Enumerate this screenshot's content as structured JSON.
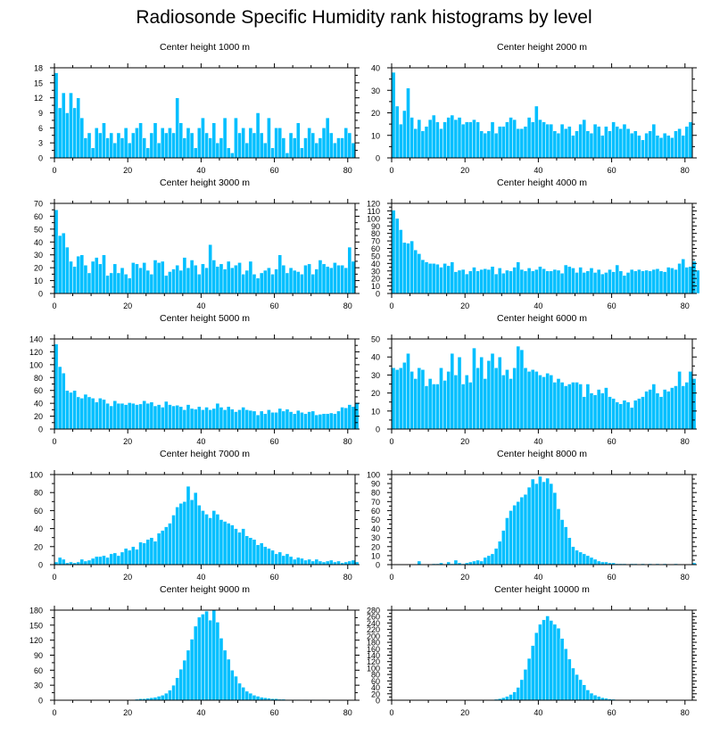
{
  "title": "Radiosonde Specific Humidity rank histograms by level",
  "style": {
    "bar_color": "#00bfff",
    "bar_edge": "#ffffff",
    "axis_color": "#000000"
  },
  "chart_data": [
    {
      "type": "bar",
      "title": "Center height 1000 m",
      "xlim": [
        0,
        82
      ],
      "ylim": [
        0,
        18
      ],
      "xticks": [
        0,
        20,
        40,
        60,
        80
      ],
      "yticks": [
        0,
        3,
        6,
        9,
        12,
        15,
        18
      ],
      "values": [
        17,
        10,
        13,
        9,
        13,
        10,
        12,
        8,
        4,
        5,
        2,
        6,
        5,
        7,
        4,
        5,
        3,
        5,
        4,
        6,
        3,
        5,
        6,
        7,
        4,
        2,
        5,
        7,
        3,
        6,
        5,
        6,
        5,
        12,
        7,
        4,
        6,
        5,
        2,
        6,
        8,
        5,
        4,
        7,
        3,
        4,
        8,
        2,
        1,
        8,
        5,
        6,
        3,
        6,
        5,
        9,
        5,
        3,
        8,
        2,
        6,
        6,
        4,
        1,
        5,
        4,
        7,
        2,
        4,
        6,
        5,
        3,
        4,
        6,
        8,
        5,
        3,
        4,
        4,
        6,
        5,
        3
      ]
    },
    {
      "type": "bar",
      "title": "Center height 2000 m",
      "xlim": [
        0,
        82
      ],
      "ylim": [
        0,
        40
      ],
      "xticks": [
        0,
        20,
        40,
        60,
        80
      ],
      "yticks": [
        0,
        10,
        20,
        30,
        40
      ],
      "values": [
        38,
        23,
        15,
        21,
        31,
        18,
        13,
        17,
        12,
        14,
        17,
        19,
        16,
        13,
        16,
        18,
        19,
        17,
        18,
        15,
        16,
        16,
        17,
        16,
        12,
        11,
        12,
        16,
        11,
        14,
        14,
        16,
        18,
        17,
        13,
        13,
        14,
        18,
        16,
        23,
        17,
        16,
        15,
        15,
        12,
        11,
        15,
        13,
        14,
        10,
        12,
        15,
        17,
        12,
        11,
        15,
        14,
        10,
        14,
        12,
        16,
        14,
        13,
        15,
        13,
        11,
        12,
        10,
        8,
        11,
        12,
        15,
        10,
        9,
        11,
        10,
        9,
        12,
        13,
        10,
        14,
        16
      ]
    },
    {
      "type": "bar",
      "title": "Center height 3000 m",
      "xlim": [
        0,
        82
      ],
      "ylim": [
        0,
        70
      ],
      "xticks": [
        0,
        20,
        40,
        60,
        80
      ],
      "yticks": [
        0,
        10,
        20,
        30,
        40,
        50,
        60,
        70
      ],
      "values": [
        65,
        45,
        47,
        36,
        25,
        21,
        29,
        30,
        22,
        16,
        25,
        28,
        23,
        30,
        14,
        16,
        23,
        16,
        20,
        15,
        12,
        24,
        23,
        20,
        24,
        18,
        15,
        26,
        24,
        25,
        14,
        17,
        19,
        22,
        18,
        28,
        20,
        26,
        22,
        15,
        23,
        20,
        38,
        26,
        21,
        23,
        19,
        25,
        20,
        22,
        24,
        15,
        18,
        25,
        15,
        12,
        16,
        18,
        20,
        15,
        19,
        30,
        22,
        16,
        20,
        18,
        17,
        15,
        22,
        23,
        15,
        19,
        26,
        23,
        21,
        20,
        24,
        22,
        22,
        20,
        36,
        25
      ]
    },
    {
      "type": "bar",
      "title": "Center height 4000 m",
      "xlim": [
        0,
        82
      ],
      "ylim": [
        0,
        120
      ],
      "xticks": [
        0,
        20,
        40,
        60,
        80
      ],
      "yticks": [
        0,
        10,
        20,
        30,
        40,
        50,
        60,
        70,
        80,
        90,
        100,
        110,
        120
      ],
      "values": [
        111,
        100,
        85,
        68,
        67,
        70,
        58,
        53,
        45,
        42,
        40,
        40,
        39,
        35,
        40,
        37,
        42,
        29,
        31,
        32,
        26,
        30,
        35,
        30,
        32,
        33,
        32,
        36,
        26,
        34,
        27,
        31,
        30,
        35,
        42,
        32,
        30,
        34,
        30,
        32,
        36,
        33,
        30,
        30,
        32,
        31,
        27,
        38,
        36,
        34,
        28,
        35,
        28,
        30,
        34,
        28,
        32,
        26,
        28,
        32,
        29,
        38,
        30,
        24,
        28,
        32,
        30,
        32,
        30,
        31,
        30,
        32,
        33,
        30,
        29,
        35,
        34,
        32,
        40,
        46,
        35,
        36,
        43,
        31
      ]
    },
    {
      "type": "bar",
      "title": "Center height 5000 m",
      "xlim": [
        0,
        82
      ],
      "ylim": [
        0,
        140
      ],
      "xticks": [
        0,
        20,
        40,
        60,
        80
      ],
      "yticks": [
        0,
        20,
        40,
        60,
        80,
        100,
        120,
        140
      ],
      "values": [
        132,
        97,
        87,
        60,
        57,
        60,
        50,
        48,
        54,
        50,
        48,
        42,
        48,
        46,
        40,
        36,
        44,
        40,
        40,
        38,
        41,
        40,
        38,
        39,
        44,
        40,
        42,
        36,
        38,
        34,
        43,
        38,
        36,
        37,
        35,
        30,
        38,
        32,
        31,
        35,
        30,
        34,
        30,
        32,
        40,
        34,
        30,
        35,
        31,
        27,
        30,
        34,
        30,
        29,
        28,
        22,
        28,
        24,
        30,
        26,
        26,
        32,
        28,
        31,
        27,
        24,
        29,
        26,
        24,
        27,
        28,
        22,
        23,
        24,
        24,
        25,
        24,
        28,
        34,
        33,
        38,
        35,
        41
      ]
    },
    {
      "type": "bar",
      "title": "Center height 6000 m",
      "xlim": [
        0,
        82
      ],
      "ylim": [
        0,
        50
      ],
      "xticks": [
        0,
        20,
        40,
        60,
        80
      ],
      "yticks": [
        0,
        10,
        20,
        30,
        40,
        50
      ],
      "values": [
        34,
        33,
        34,
        37,
        42,
        32,
        28,
        34,
        33,
        24,
        28,
        25,
        25,
        34,
        27,
        32,
        42,
        30,
        40,
        25,
        30,
        26,
        45,
        34,
        40,
        28,
        38,
        42,
        34,
        40,
        30,
        33,
        28,
        34,
        46,
        44,
        34,
        32,
        33,
        32,
        30,
        29,
        31,
        30,
        26,
        28,
        26,
        24,
        25,
        26,
        26,
        25,
        18,
        25,
        20,
        19,
        22,
        20,
        23,
        18,
        17,
        15,
        14,
        16,
        15,
        12,
        16,
        17,
        18,
        21,
        22,
        25,
        20,
        18,
        22,
        21,
        23,
        24,
        32,
        24,
        26,
        32,
        28
      ]
    },
    {
      "type": "bar",
      "title": "Center height 7000 m",
      "xlim": [
        0,
        82
      ],
      "ylim": [
        0,
        100
      ],
      "xticks": [
        0,
        20,
        40,
        60,
        80
      ],
      "yticks": [
        0,
        20,
        40,
        60,
        80,
        100
      ],
      "values": [
        3,
        8,
        6,
        2,
        3,
        2,
        3,
        6,
        4,
        5,
        7,
        9,
        9,
        10,
        8,
        12,
        13,
        10,
        14,
        18,
        16,
        20,
        17,
        25,
        24,
        28,
        30,
        26,
        35,
        38,
        42,
        46,
        55,
        64,
        68,
        70,
        87,
        72,
        80,
        66,
        60,
        56,
        52,
        60,
        56,
        50,
        48,
        46,
        44,
        40,
        36,
        40,
        32,
        30,
        28,
        22,
        24,
        20,
        18,
        16,
        12,
        14,
        10,
        12,
        9,
        6,
        8,
        7,
        5,
        6,
        4,
        6,
        4,
        3,
        4,
        5,
        3,
        4,
        2,
        3,
        4,
        5,
        3
      ]
    },
    {
      "type": "bar",
      "title": "Center height 8000 m",
      "xlim": [
        0,
        82
      ],
      "ylim": [
        0,
        100
      ],
      "xticks": [
        0,
        20,
        40,
        60,
        80
      ],
      "yticks": [
        0,
        10,
        20,
        30,
        40,
        50,
        60,
        70,
        80,
        90,
        100
      ],
      "values": [
        0,
        0,
        0,
        0,
        0,
        0,
        0,
        4,
        0,
        0,
        0,
        1,
        1,
        2,
        0,
        3,
        1,
        5,
        2,
        1,
        2,
        3,
        4,
        5,
        4,
        8,
        10,
        12,
        18,
        26,
        38,
        52,
        60,
        66,
        70,
        75,
        78,
        86,
        95,
        90,
        98,
        92,
        96,
        90,
        80,
        62,
        50,
        42,
        30,
        20,
        16,
        14,
        12,
        10,
        8,
        6,
        4,
        3,
        3,
        2,
        2,
        1,
        1,
        1,
        0,
        1,
        1,
        0,
        1,
        0,
        1,
        0,
        1,
        0,
        1,
        0,
        0,
        1,
        0,
        0,
        0,
        0,
        2
      ]
    },
    {
      "type": "bar",
      "title": "Center height 9000 m",
      "xlim": [
        0,
        82
      ],
      "ylim": [
        0,
        180
      ],
      "xticks": [
        0,
        20,
        40,
        60,
        80
      ],
      "yticks": [
        0,
        30,
        60,
        90,
        120,
        150,
        180
      ],
      "values": [
        0,
        0,
        0,
        0,
        0,
        0,
        0,
        0,
        0,
        0,
        0,
        0,
        0,
        0,
        0,
        0,
        0,
        0,
        0,
        0,
        0,
        1,
        2,
        3,
        3,
        4,
        5,
        6,
        8,
        10,
        14,
        20,
        30,
        45,
        62,
        80,
        100,
        122,
        148,
        166,
        172,
        178,
        160,
        180,
        156,
        124,
        100,
        82,
        60,
        48,
        34,
        26,
        18,
        14,
        10,
        8,
        6,
        5,
        4,
        3,
        3,
        2,
        2,
        1,
        1,
        1,
        1,
        0,
        1,
        0,
        1,
        0,
        0,
        1,
        0,
        0,
        0,
        0,
        0,
        0,
        0,
        0,
        0
      ]
    },
    {
      "type": "bar",
      "title": "Center height 10000 m",
      "xlim": [
        0,
        82
      ],
      "ylim": [
        0,
        280
      ],
      "xticks": [
        0,
        20,
        40,
        60,
        80
      ],
      "yticks": [
        0,
        20,
        40,
        60,
        80,
        100,
        120,
        140,
        160,
        180,
        200,
        220,
        240,
        260,
        280
      ],
      "values": [
        0,
        0,
        0,
        0,
        0,
        0,
        0,
        0,
        0,
        0,
        0,
        0,
        0,
        0,
        0,
        0,
        0,
        0,
        0,
        0,
        0,
        0,
        0,
        0,
        0,
        1,
        1,
        2,
        3,
        5,
        8,
        12,
        18,
        26,
        40,
        64,
        96,
        130,
        170,
        210,
        236,
        250,
        262,
        248,
        236,
        224,
        192,
        160,
        128,
        100,
        80,
        64,
        48,
        32,
        22,
        16,
        12,
        8,
        6,
        4,
        3,
        2,
        2,
        1,
        1,
        1,
        0,
        1,
        0,
        0,
        1,
        0,
        0,
        0,
        0,
        0,
        0,
        0,
        0,
        0,
        0,
        0,
        0
      ]
    }
  ]
}
